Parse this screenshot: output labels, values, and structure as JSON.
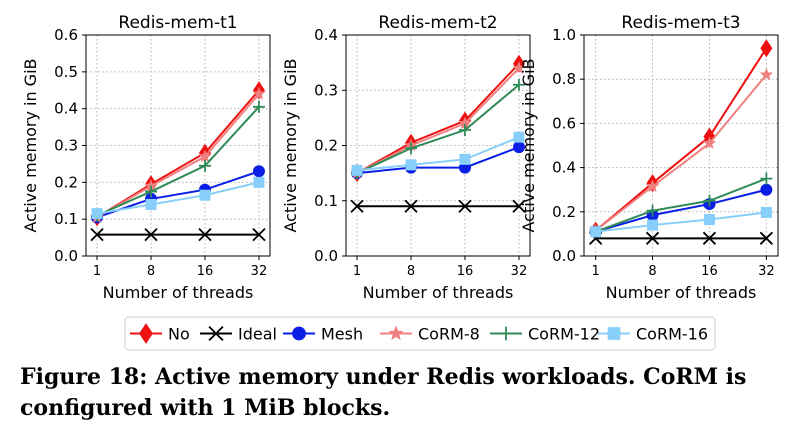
{
  "chart_data": {
    "type": "line",
    "x": [
      1,
      8,
      16,
      32
    ],
    "xlabel": "Number of threads",
    "ylabel": "Active memory in GiB",
    "grid": true,
    "legend_position": "bottom",
    "legend": [
      {
        "name": "No",
        "color": "#ee1111",
        "marker": "diamond"
      },
      {
        "name": "Ideal",
        "color": "#000000",
        "marker": "x"
      },
      {
        "name": "Mesh",
        "color": "#0a1ee6",
        "marker": "circle"
      },
      {
        "name": "CoRM-8",
        "color": "#f08080",
        "marker": "star"
      },
      {
        "name": "CoRM-12",
        "color": "#2e8b57",
        "marker": "plus"
      },
      {
        "name": "CoRM-16",
        "color": "#87cefa",
        "marker": "square"
      }
    ],
    "panels": [
      {
        "title": "Redis-mem-t1",
        "ylim": [
          0,
          0.6
        ],
        "yticks": [
          "0.0",
          "0.1",
          "0.2",
          "0.3",
          "0.4",
          "0.5",
          "0.6"
        ],
        "series": [
          {
            "name": "No",
            "values": [
              0.105,
              0.195,
              0.28,
              0.45
            ]
          },
          {
            "name": "Ideal",
            "values": [
              0.058,
              0.058,
              0.058,
              0.058
            ]
          },
          {
            "name": "Mesh",
            "values": [
              0.105,
              0.155,
              0.18,
              0.23
            ]
          },
          {
            "name": "CoRM-8",
            "values": [
              0.105,
              0.19,
              0.27,
              0.44
            ]
          },
          {
            "name": "CoRM-12",
            "values": [
              0.11,
              0.175,
              0.245,
              0.405
            ]
          },
          {
            "name": "CoRM-16",
            "values": [
              0.115,
              0.14,
              0.165,
              0.2
            ]
          }
        ]
      },
      {
        "title": "Redis-mem-t2",
        "ylim": [
          0,
          0.4
        ],
        "yticks": [
          "0.0",
          "0.1",
          "0.2",
          "0.3",
          "0.4"
        ],
        "series": [
          {
            "name": "No",
            "values": [
              0.15,
              0.205,
              0.245,
              0.348
            ]
          },
          {
            "name": "Ideal",
            "values": [
              0.09,
              0.09,
              0.09,
              0.09
            ]
          },
          {
            "name": "Mesh",
            "values": [
              0.15,
              0.16,
              0.16,
              0.197
            ]
          },
          {
            "name": "CoRM-8",
            "values": [
              0.15,
              0.2,
              0.24,
              0.34
            ]
          },
          {
            "name": "CoRM-12",
            "values": [
              0.15,
              0.195,
              0.228,
              0.31
            ]
          },
          {
            "name": "CoRM-16",
            "values": [
              0.155,
              0.165,
              0.175,
              0.215
            ]
          }
        ]
      },
      {
        "title": "Redis-mem-t3",
        "ylim": [
          0,
          1.0
        ],
        "yticks": [
          "0.0",
          "0.2",
          "0.4",
          "0.6",
          "0.8",
          "1.0"
        ],
        "series": [
          {
            "name": "No",
            "values": [
              0.115,
              0.33,
              0.54,
              0.94
            ]
          },
          {
            "name": "Ideal",
            "values": [
              0.08,
              0.08,
              0.08,
              0.08
            ]
          },
          {
            "name": "Mesh",
            "values": [
              0.11,
              0.185,
              0.235,
              0.3
            ]
          },
          {
            "name": "CoRM-8",
            "values": [
              0.115,
              0.315,
              0.51,
              0.82
            ]
          },
          {
            "name": "CoRM-12",
            "values": [
              0.11,
              0.205,
              0.25,
              0.35
            ]
          },
          {
            "name": "CoRM-16",
            "values": [
              0.11,
              0.14,
              0.165,
              0.197
            ]
          }
        ]
      }
    ]
  },
  "caption": "Figure 18: Active memory under Redis workloads. CoRM is configured with 1 MiB blocks."
}
